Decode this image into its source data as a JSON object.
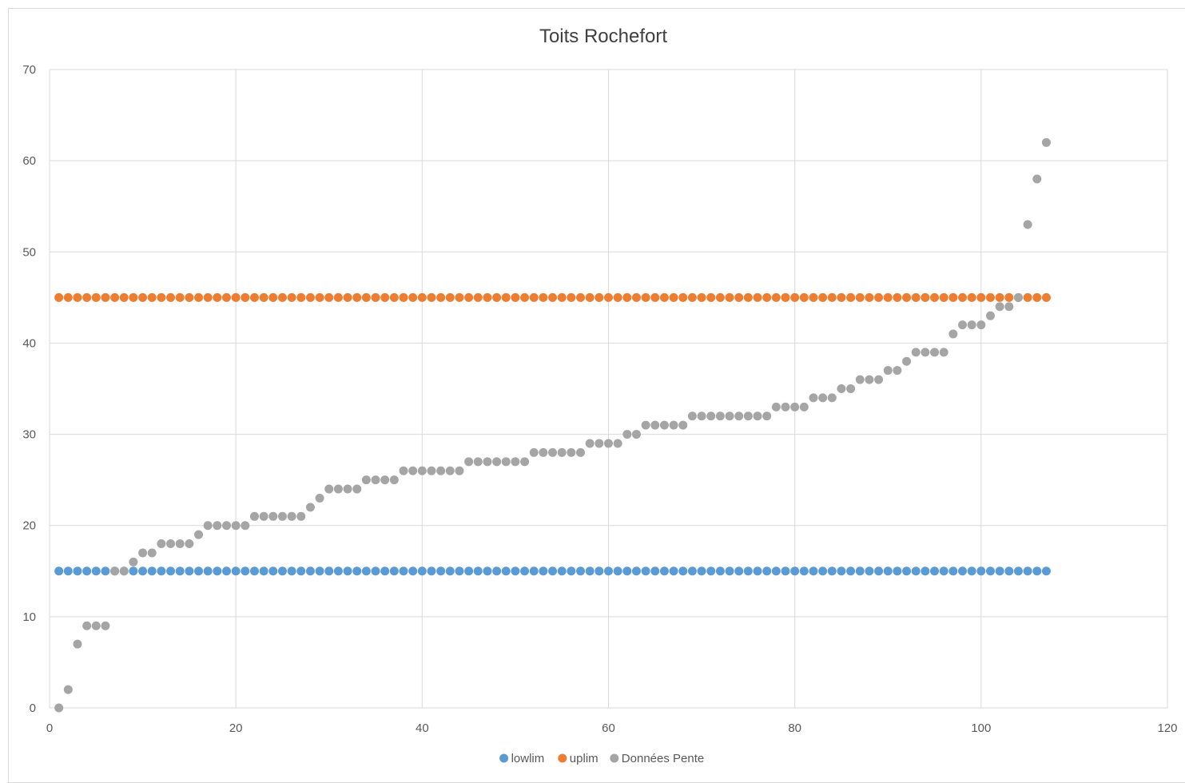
{
  "chart_data": {
    "type": "scatter",
    "title": "Toits Rochefort",
    "xlabel": "",
    "ylabel": "",
    "xlim": [
      0,
      120
    ],
    "ylim": [
      0,
      70
    ],
    "x_ticks": [
      0,
      20,
      40,
      60,
      80,
      100,
      120
    ],
    "y_ticks": [
      0,
      10,
      20,
      30,
      40,
      50,
      60,
      70
    ],
    "grid": true,
    "legend_position": "bottom",
    "series": [
      {
        "name": "lowlim",
        "color": "#5b9bd5",
        "x_range": [
          1,
          107
        ],
        "constant": 15
      },
      {
        "name": "uplim",
        "color": "#ed7d31",
        "x_range": [
          1,
          107
        ],
        "constant": 45
      },
      {
        "name": "Données Pente",
        "color": "#a5a5a5",
        "x_start": 1,
        "values": [
          0,
          2,
          7,
          9,
          9,
          9,
          15,
          15,
          16,
          17,
          17,
          18,
          18,
          18,
          18,
          19,
          20,
          20,
          20,
          20,
          20,
          21,
          21,
          21,
          21,
          21,
          21,
          22,
          23,
          24,
          24,
          24,
          24,
          25,
          25,
          25,
          25,
          26,
          26,
          26,
          26,
          26,
          26,
          26,
          27,
          27,
          27,
          27,
          27,
          27,
          27,
          28,
          28,
          28,
          28,
          28,
          28,
          29,
          29,
          29,
          29,
          30,
          30,
          31,
          31,
          31,
          31,
          31,
          32,
          32,
          32,
          32,
          32,
          32,
          32,
          32,
          32,
          33,
          33,
          33,
          33,
          34,
          34,
          34,
          35,
          35,
          36,
          36,
          36,
          37,
          37,
          38,
          39,
          39,
          39,
          39,
          41,
          42,
          42,
          42,
          43,
          44,
          44,
          45,
          53,
          58,
          62
        ]
      }
    ]
  }
}
